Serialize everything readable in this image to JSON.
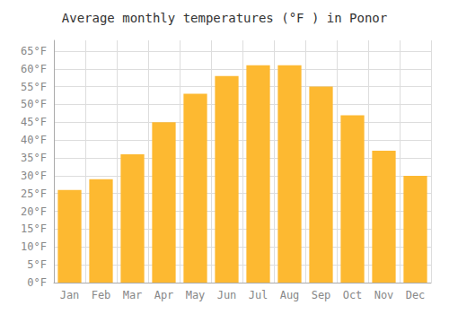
{
  "chart_data": {
    "type": "bar",
    "title": "Average monthly temperatures (°F ) in Ponor",
    "categories": [
      "Jan",
      "Feb",
      "Mar",
      "Apr",
      "May",
      "Jun",
      "Jul",
      "Aug",
      "Sep",
      "Oct",
      "Nov",
      "Dec"
    ],
    "values": [
      26,
      29,
      36,
      45,
      53,
      58,
      61,
      61,
      55,
      47,
      37,
      30
    ],
    "color": "#FDB931",
    "ylim": [
      0,
      68
    ],
    "yticks": [
      {
        "value": 0,
        "label": "0°F"
      },
      {
        "value": 5,
        "label": "5°F"
      },
      {
        "value": 10,
        "label": "10°F"
      },
      {
        "value": 15,
        "label": "15°F"
      },
      {
        "value": 20,
        "label": "20°F"
      },
      {
        "value": 25,
        "label": "25°F"
      },
      {
        "value": 30,
        "label": "30°F"
      },
      {
        "value": 35,
        "label": "35°F"
      },
      {
        "value": 40,
        "label": "40°F"
      },
      {
        "value": 45,
        "label": "45°F"
      },
      {
        "value": 50,
        "label": "50°F"
      },
      {
        "value": 55,
        "label": "55°F"
      },
      {
        "value": 60,
        "label": "60°F"
      },
      {
        "value": 65,
        "label": "65°F"
      }
    ],
    "grid": true
  }
}
